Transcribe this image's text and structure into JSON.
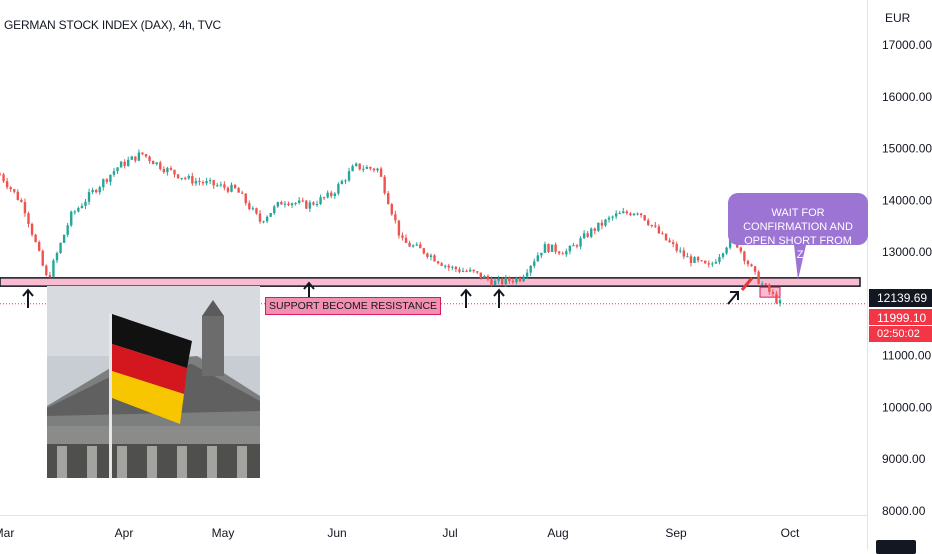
{
  "header": {
    "title": "GERMAN STOCK INDEX (DAX), 4h, TVC"
  },
  "axis": {
    "currency": "EUR",
    "price_labels": [
      "17000.00",
      "16000.00",
      "15000.00",
      "14000.00",
      "13000.00",
      "11000.00",
      "10000.00",
      "9000.00",
      "8000.00"
    ],
    "time_labels": [
      "Mar",
      "Apr",
      "May",
      "Jun",
      "Jul",
      "Aug",
      "Sep",
      "Oct"
    ]
  },
  "price_badges": {
    "last_price": "12139.69",
    "current_price": "11999.10",
    "countdown": "02:50:02",
    "last_color": "#131722",
    "current_color": "#f23645"
  },
  "annotations": {
    "callout_text": "WAIT FOR CONFIRMATION AND OPEN SHORT FROM THIS ZONE",
    "support_label": "SUPPORT BECOME RESISTANCE",
    "callout_color": "#9b74d4",
    "zone_color": "#f8bbd0"
  },
  "chart_data": {
    "type": "line",
    "title": "GERMAN STOCK INDEX (DAX), 4h, TVC",
    "ylabel": "EUR",
    "ylim": [
      8000,
      17500
    ],
    "x_ticks": [
      "Mar",
      "Apr",
      "May",
      "Jun",
      "Jul",
      "Aug",
      "Sep",
      "Oct"
    ],
    "support_zone": [
      12340,
      12500
    ],
    "series": [
      {
        "x": [
          "Mar 01",
          "Mar 05",
          "Mar 08",
          "Mar 10",
          "Mar 15",
          "Mar 22",
          "Mar 29",
          "Apr 05",
          "Apr 12",
          "Apr 19",
          "Apr 26",
          "May 03",
          "May 10",
          "May 17",
          "May 24",
          "May 31",
          "Jun 07",
          "Jun 14",
          "Jun 21",
          "Jun 28",
          "Jul 05",
          "Jul 12",
          "Jul 19",
          "Jul 26",
          "Aug 02",
          "Aug 09",
          "Aug 16",
          "Aug 23",
          "Aug 30",
          "Sep 06",
          "Sep 13",
          "Sep 20",
          "Sep 26",
          "Sep 29"
        ],
        "values": [
          14500,
          13900,
          12450,
          13700,
          14200,
          14650,
          14900,
          14600,
          14400,
          14300,
          14200,
          13600,
          14000,
          13900,
          14100,
          14650,
          14600,
          13200,
          13000,
          12700,
          12600,
          12400,
          12500,
          13100,
          13000,
          13400,
          13700,
          13800,
          13300,
          12900,
          12700,
          13300,
          12500,
          12000
        ]
      }
    ]
  }
}
